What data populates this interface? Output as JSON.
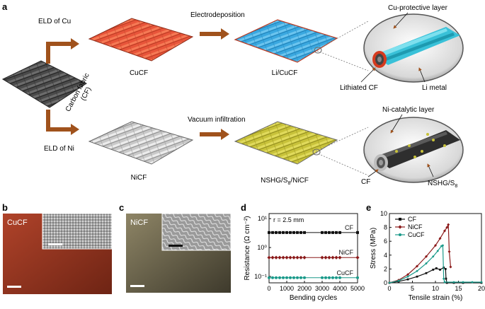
{
  "panels": {
    "a": {
      "label": "a",
      "top": {
        "route_label": "ELD of Cu",
        "step_label": "Electrodeposition",
        "fabric1": "CuCF",
        "fabric2": "Li/CuCF",
        "callout_top": "Cu-protective layer",
        "callout_left": "Lithiated CF",
        "callout_right": "Li metal"
      },
      "start_fabric": "Carbon fabric (CF)",
      "start_fabric_line1": "Carbon fabric",
      "start_fabric_line2": "(CF)",
      "bottom": {
        "route_label": "ELD of Ni",
        "step_label": "Vacuum infiltration",
        "fabric1": "NiCF",
        "fabric2_main": "NSHG/S",
        "fabric2_sub": "8",
        "fabric2_tail": "/NiCF",
        "callout_top": "Ni-catalytic layer",
        "callout_left": "CF",
        "callout_right_main": "NSHG/S",
        "callout_right_sub": "8"
      }
    },
    "b": {
      "label": "b",
      "photo_label": "CuCF"
    },
    "c": {
      "label": "c",
      "photo_label": "NiCF"
    },
    "d": {
      "label": "d",
      "annotation": "r = 2.5 mm"
    },
    "e": {
      "label": "e"
    }
  },
  "colors": {
    "arrow": "#a0521c",
    "cu_fabric": "#e8553a",
    "li_fabric": "#3aa8e0",
    "ni_fabric": "#c9c9c9",
    "s_fabric": "#c8c23a",
    "cf_fabric": "#4a4a4a",
    "cf_series": "#111111",
    "nicf_series": "#8b1a1a",
    "cucf_series": "#1a9a8a"
  },
  "chart_data": [
    {
      "id": "d",
      "type": "line",
      "xlabel": "Bending cycles",
      "ylabel": "Resistance (Ω cm⁻²)",
      "x_ticks": [
        "0",
        "1000",
        "2000",
        "3000",
        "4000",
        "5000"
      ],
      "y_scale": "log",
      "y_ticks": [
        "10⁻¹",
        "10⁰",
        "10¹"
      ],
      "xlim": [
        0,
        5000
      ],
      "ylim": [
        0.06,
        15
      ],
      "x": [
        0,
        200,
        400,
        600,
        800,
        1000,
        1200,
        1400,
        1600,
        1800,
        2000,
        3000,
        3200,
        3400,
        3600,
        3800,
        4000,
        5000
      ],
      "series": [
        {
          "name": "CF",
          "marker": "square",
          "values": [
            3.3,
            3.3,
            3.3,
            3.3,
            3.3,
            3.3,
            3.3,
            3.3,
            3.3,
            3.3,
            3.3,
            3.3,
            3.3,
            3.3,
            3.3,
            3.3,
            3.3,
            3.3
          ]
        },
        {
          "name": "NiCF",
          "marker": "diamond",
          "values": [
            0.45,
            0.45,
            0.45,
            0.45,
            0.45,
            0.45,
            0.45,
            0.45,
            0.45,
            0.45,
            0.45,
            0.45,
            0.45,
            0.45,
            0.45,
            0.45,
            0.45,
            0.45
          ]
        },
        {
          "name": "CuCF",
          "marker": "circle",
          "values": [
            0.09,
            0.09,
            0.09,
            0.09,
            0.09,
            0.09,
            0.09,
            0.09,
            0.09,
            0.09,
            0.09,
            0.09,
            0.09,
            0.09,
            0.09,
            0.09,
            0.09,
            0.09
          ]
        }
      ]
    },
    {
      "id": "e",
      "type": "line",
      "xlabel": "Tensile strain (%)",
      "ylabel": "Stress (MPa)",
      "x_ticks": [
        "0",
        "5",
        "10",
        "15",
        "20"
      ],
      "y_ticks": [
        "0",
        "2",
        "4",
        "6",
        "8",
        "10"
      ],
      "xlim": [
        0,
        20
      ],
      "ylim": [
        0,
        10
      ],
      "legend": "top-left",
      "series": [
        {
          "name": "CF",
          "marker": "square",
          "x": [
            0,
            2,
            4,
            6,
            8,
            9.5,
            10.2,
            11,
            11.8,
            12.2,
            12.3,
            12.5,
            14,
            16,
            20
          ],
          "y": [
            0,
            0.2,
            0.5,
            0.9,
            1.4,
            1.9,
            2.1,
            1.9,
            2.2,
            2.0,
            0.6,
            0,
            0,
            0,
            0
          ]
        },
        {
          "name": "NiCF",
          "marker": "diamond",
          "x": [
            0,
            2,
            4,
            6,
            8,
            10,
            11,
            12,
            12.5,
            12.8,
            13,
            13.3
          ],
          "y": [
            0,
            0.4,
            1.2,
            2.4,
            3.8,
            5.4,
            6.4,
            7.5,
            8.0,
            8.4,
            4.5,
            2.3
          ]
        },
        {
          "name": "CuCF",
          "marker": "circle",
          "x": [
            0,
            2,
            4,
            6,
            8,
            9.5,
            10.5,
            11.3,
            11.6,
            11.8,
            12,
            14,
            16,
            18,
            20
          ],
          "y": [
            0,
            0.3,
            0.9,
            1.7,
            2.8,
            3.8,
            4.6,
            5.3,
            5.4,
            0.6,
            0.1,
            0.1,
            0.1,
            0.1,
            0.1
          ]
        }
      ]
    }
  ]
}
